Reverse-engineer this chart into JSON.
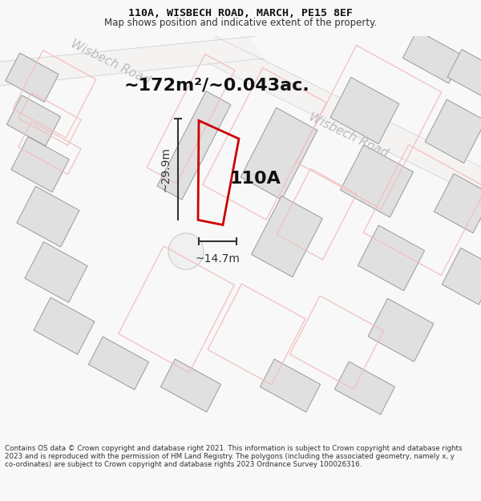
{
  "title": "110A, WISBECH ROAD, MARCH, PE15 8EF",
  "subtitle": "Map shows position and indicative extent of the property.",
  "area_text": "~172m²/~0.043ac.",
  "label_110A": "110A",
  "dim_height": "~29.9m",
  "dim_width": "~14.7m",
  "road_label_1": "Wisbech Road",
  "road_label_2": "Wisbech Road",
  "footer": "Contains OS data © Crown copyright and database right 2021. This information is subject to Crown copyright and database rights 2023 and is reproduced with the permission of HM Land Registry. The polygons (including the associated geometry, namely x, y co-ordinates) are subject to Crown copyright and database rights 2023 Ordnance Survey 100026316.",
  "bg_color": "#f8f8f8",
  "map_bg": "#ffffff",
  "road_text_color": "#bbbbbb",
  "building_fill": "#e0e0e0",
  "building_outline": "#e8c0c0",
  "plot_outline": "#f0c0c0",
  "highlight_color": "#cc0000",
  "dim_color": "#333333",
  "area_text_color": "#111111",
  "label_color": "#111111",
  "footer_color": "#333333",
  "title_color": "#111111",
  "subtitle_color": "#333333",
  "cul_de_sac_fill": "#f0f0f0",
  "cul_de_sac_edge": "#cccccc"
}
